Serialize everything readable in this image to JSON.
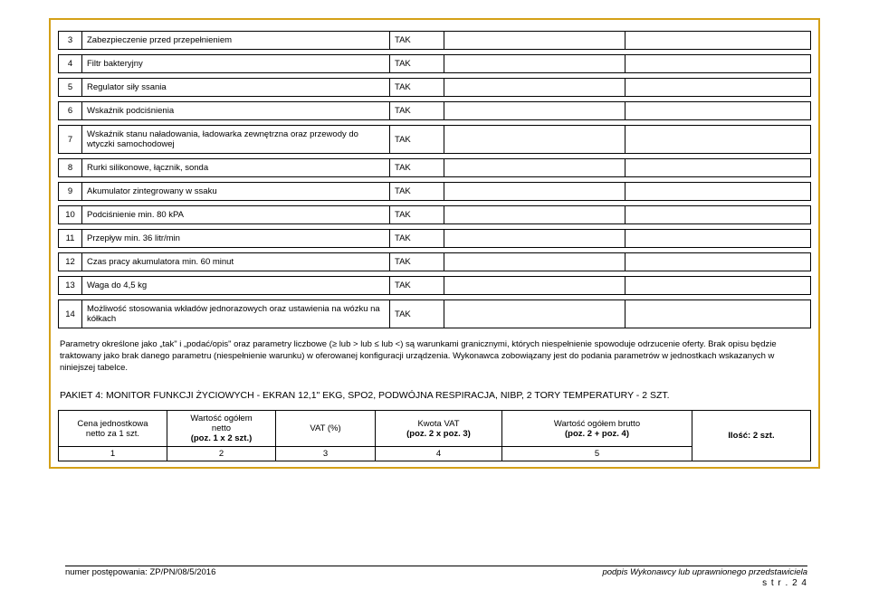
{
  "spec_rows": [
    {
      "n": "3",
      "desc": "Zabezpieczenie przed przepełnieniem",
      "tak": "TAK"
    },
    {
      "n": "4",
      "desc": "Filtr bakteryjny",
      "tak": "TAK"
    },
    {
      "n": "5",
      "desc": "Regulator siły ssania",
      "tak": "TAK"
    },
    {
      "n": "6",
      "desc": "Wskaźnik podciśnienia",
      "tak": "TAK"
    },
    {
      "n": "7",
      "desc": "Wskaźnik stanu naładowania, ładowarka zewnętrzna oraz przewody do wtyczki samochodowej",
      "tak": "TAK"
    },
    {
      "n": "8",
      "desc": "Rurki silikonowe, łącznik, sonda",
      "tak": "TAK"
    },
    {
      "n": "9",
      "desc": "Akumulator zintegrowany w ssaku",
      "tak": "TAK"
    },
    {
      "n": "10",
      "desc": "Podciśnienie min. 80 kPA",
      "tak": "TAK"
    },
    {
      "n": "11",
      "desc": "Przepływ min. 36 litr/min",
      "tak": "TAK"
    },
    {
      "n": "12",
      "desc": "Czas pracy akumulatora min. 60 minut",
      "tak": "TAK"
    },
    {
      "n": "13",
      "desc": "Waga do 4,5 kg",
      "tak": "TAK"
    },
    {
      "n": "14",
      "desc": "Możliwość stosowania wkładów  jednorazowych oraz ustawienia na wózku na kółkach",
      "tak": "TAK"
    }
  ],
  "note_text": "Parametry określone jako „tak\" i „podać/opis\" oraz parametry liczbowe (≥ lub > lub ≤ lub <) są warunkami granicznymi, których niespełnienie spowoduje odrzucenie oferty. Brak opisu będzie traktowany jako brak danego parametru (niespełnienie warunku) w oferowanej konfiguracji urządzenia. Wykonawca zobowiązany jest do podania parametrów w jednostkach wskazanych w niniejszej tabelce.",
  "pakiet_title": "PAKIET 4: MONITOR FUNKCJI ŻYCIOWYCH - EKRAN 12,1\" EKG, SPO2, PODWÓJNA RESPIRACJA, NIBP, 2 TORY TEMPERATURY - 2  SZT.",
  "price_headers": {
    "c1": "Cena jednostkowa\nnetto za 1 szt.",
    "c2": "Wartość ogółem\nnetto\n(poz. 1 x 2 szt.)",
    "c3": "VAT (%)",
    "c4": "Kwota VAT\n(poz. 2 x poz. 3)",
    "c5": "Wartość ogółem brutto\n(poz. 2 + poz. 4)",
    "c6": "Ilość: 2 szt."
  },
  "price_nums": {
    "c1": "1",
    "c2": "2",
    "c3": "3",
    "c4": "4",
    "c5": "5"
  },
  "footer": {
    "left": "numer postępowania: ZP/PN/08/5/2016",
    "right": "podpis Wykonawcy lub uprawnionego przedstawiciela",
    "page": "s t r .   2 4"
  },
  "colors": {
    "border": "#d4a017"
  }
}
